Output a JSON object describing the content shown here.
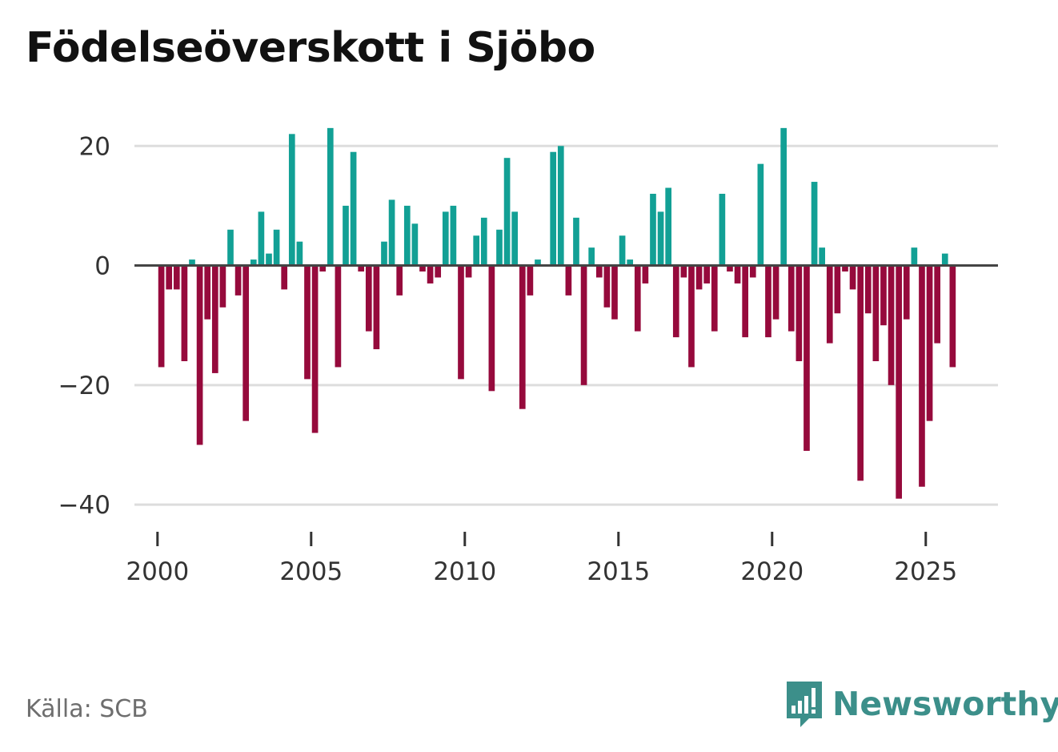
{
  "title": "Födelseöverskott i Sjöbo",
  "source": "Källa: SCB",
  "brand": {
    "name": "Newsworthy",
    "icon": "newsworthy-logo-icon"
  },
  "colors": {
    "positive": "#12a095",
    "negative": "#960a3c",
    "zero_line": "#444444",
    "grid": "#dddddd",
    "brand": "#3c8f8a"
  },
  "chart_data": {
    "type": "bar",
    "title": "Födelseöverskott i Sjöbo",
    "xlabel": "",
    "ylabel": "",
    "x_unit": "quarter",
    "start": "2000 Q1",
    "xlim": [
      1999.25,
      2027.35
    ],
    "ylim": [
      -44,
      27
    ],
    "y_ticks": [
      20,
      0,
      -20,
      -40
    ],
    "y_tick_labels": [
      "20",
      "0",
      "−20",
      "−40"
    ],
    "x_ticks": [
      2000,
      2005,
      2010,
      2015,
      2020,
      2025
    ],
    "x_tick_labels": [
      "2000",
      "2005",
      "2010",
      "2015",
      "2020",
      "2025"
    ],
    "grid": true,
    "values": [
      -17,
      -4,
      -4,
      -16,
      1,
      -30,
      -9,
      -18,
      -7,
      6,
      -5,
      -26,
      1,
      9,
      2,
      6,
      -4,
      22,
      4,
      -19,
      -28,
      -1,
      23,
      -17,
      10,
      19,
      -1,
      -11,
      -14,
      4,
      11,
      -5,
      10,
      7,
      -1,
      -3,
      -2,
      9,
      10,
      -19,
      -2,
      5,
      8,
      -21,
      6,
      18,
      9,
      -24,
      -5,
      1,
      0,
      19,
      20,
      -5,
      8,
      -20,
      3,
      -2,
      -7,
      -9,
      5,
      1,
      -11,
      -3,
      12,
      9,
      13,
      -12,
      -2,
      -17,
      -4,
      -3,
      -11,
      12,
      -1,
      -3,
      -12,
      -2,
      17,
      -12,
      -9,
      23,
      -11,
      -16,
      -31,
      14,
      3,
      -13,
      -8,
      -1,
      -4,
      -36,
      -8,
      -16,
      -10,
      -20,
      -39,
      -9,
      3,
      -37,
      -26,
      -13,
      2,
      -17
    ]
  }
}
